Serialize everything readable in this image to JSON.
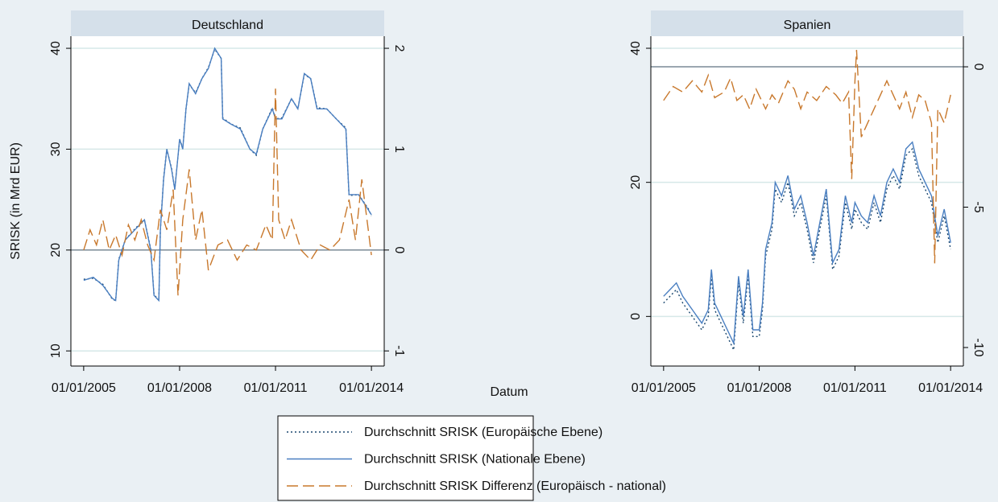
{
  "chart_data": [
    {
      "type": "line",
      "title": "Deutschland",
      "ylabel": "SRISK (in Mrd EUR)",
      "xlabel": "Datum",
      "xlim": [
        2004.6,
        2014.4
      ],
      "xticks": [
        {
          "value": 2005,
          "label": "01/01/2005"
        },
        {
          "value": 2008,
          "label": "01/01/2008"
        },
        {
          "value": 2011,
          "label": "01/01/2011"
        },
        {
          "value": 2014,
          "label": "01/01/2014"
        }
      ],
      "ylim": [
        8.5,
        41.2
      ],
      "yticks": [
        10,
        20,
        30,
        40
      ],
      "y2lim": [
        -1.15,
        2.12
      ],
      "y2ticks": [
        -1,
        0,
        1,
        2
      ],
      "grid": true,
      "y2_zero_line": true,
      "series": [
        {
          "name": "Durchschnitt SRISK (Europäische Ebene)",
          "color": "#1a476f",
          "style": "dotted",
          "x": [
            2005.0,
            2005.3,
            2005.6,
            2005.9,
            2006.0,
            2006.1,
            2006.3,
            2006.6,
            2006.9,
            2007.1,
            2007.2,
            2007.35,
            2007.4,
            2007.5,
            2007.6,
            2007.75,
            2007.85,
            2008.0,
            2008.1,
            2008.2,
            2008.3,
            2008.5,
            2008.7,
            2008.9,
            2009.1,
            2009.3,
            2009.35,
            2009.6,
            2009.9,
            2010.2,
            2010.4,
            2010.6,
            2010.9,
            2011.0,
            2011.2,
            2011.5,
            2011.7,
            2011.9,
            2012.1,
            2012.3,
            2012.6,
            2012.9,
            2013.2,
            2013.3,
            2013.6,
            2013.9,
            2014.0
          ],
          "values": [
            17.1,
            17.2,
            16.6,
            15.1,
            15.0,
            19.1,
            21.0,
            22.1,
            23.0,
            20.1,
            15.6,
            15.0,
            22.0,
            27.1,
            30.0,
            28.1,
            26.0,
            31.0,
            30.1,
            34.0,
            36.4,
            35.6,
            37.0,
            38.1,
            39.9,
            39.0,
            33.1,
            32.5,
            32.1,
            30.0,
            29.4,
            32.0,
            34.1,
            33.0,
            33.1,
            35.0,
            34.0,
            37.4,
            37.0,
            34.1,
            34.0,
            33.0,
            32.1,
            25.4,
            25.5,
            24.1,
            23.4
          ]
        },
        {
          "name": "Durchschnitt SRISK (Nationale Ebene)",
          "color": "#4a7fc1",
          "style": "solid",
          "x": [
            2005.0,
            2005.3,
            2005.6,
            2005.9,
            2006.0,
            2006.1,
            2006.3,
            2006.6,
            2006.9,
            2007.1,
            2007.2,
            2007.35,
            2007.4,
            2007.5,
            2007.6,
            2007.75,
            2007.85,
            2008.0,
            2008.1,
            2008.2,
            2008.3,
            2008.5,
            2008.7,
            2008.9,
            2009.1,
            2009.3,
            2009.35,
            2009.6,
            2009.9,
            2010.2,
            2010.4,
            2010.6,
            2010.9,
            2011.0,
            2011.2,
            2011.5,
            2011.7,
            2011.9,
            2012.1,
            2012.3,
            2012.6,
            2012.9,
            2013.2,
            2013.3,
            2013.6,
            2013.9,
            2014.0
          ],
          "values": [
            17.0,
            17.3,
            16.5,
            15.2,
            15.0,
            19.0,
            21.0,
            22.0,
            23.0,
            20.0,
            15.5,
            15.0,
            22.0,
            27.0,
            30.0,
            28.0,
            26.0,
            31.0,
            30.0,
            34.0,
            36.5,
            35.5,
            37.0,
            38.0,
            40.0,
            39.0,
            33.0,
            32.5,
            32.0,
            30.0,
            29.5,
            32.0,
            34.0,
            33.0,
            33.0,
            35.0,
            34.0,
            37.5,
            37.0,
            34.0,
            34.0,
            33.0,
            32.0,
            25.5,
            25.5,
            24.0,
            23.5
          ]
        },
        {
          "name": "Durchschnitt SRISK Differenz (Europäisch - national)",
          "color": "#c8782c",
          "style": "dashed",
          "axis": "y2",
          "x": [
            2005.0,
            2005.2,
            2005.4,
            2005.6,
            2005.8,
            2006.0,
            2006.2,
            2006.4,
            2006.6,
            2006.8,
            2007.0,
            2007.2,
            2007.4,
            2007.6,
            2007.8,
            2007.95,
            2008.1,
            2008.3,
            2008.5,
            2008.7,
            2008.9,
            2009.2,
            2009.5,
            2009.8,
            2010.1,
            2010.4,
            2010.7,
            2010.9,
            2011.0,
            2011.1,
            2011.3,
            2011.5,
            2011.8,
            2012.1,
            2012.4,
            2012.7,
            2013.0,
            2013.3,
            2013.5,
            2013.7,
            2013.9,
            2014.0
          ],
          "values": [
            0,
            0.2,
            0.05,
            0.3,
            0,
            0.15,
            -0.05,
            0.25,
            0.1,
            0.3,
            0.05,
            -0.1,
            0.4,
            0.2,
            0.6,
            -0.45,
            0.3,
            0.8,
            0.1,
            0.4,
            -0.2,
            0.05,
            0.1,
            -0.1,
            0.05,
            0,
            0.25,
            0.1,
            1.6,
            0.3,
            0.1,
            0.3,
            0,
            -0.1,
            0.05,
            0,
            0.1,
            0.5,
            0.1,
            0.7,
            0.2,
            -0.05
          ]
        }
      ]
    },
    {
      "type": "line",
      "title": "Spanien",
      "xlim": [
        2004.6,
        2014.4
      ],
      "xticks": [
        {
          "value": 2005,
          "label": "01/01/2005"
        },
        {
          "value": 2008,
          "label": "01/01/2008"
        },
        {
          "value": 2011,
          "label": "01/01/2011"
        },
        {
          "value": 2014,
          "label": "01/01/2014"
        }
      ],
      "ylim": [
        -7.4,
        41.8
      ],
      "yticks": [
        0,
        20,
        40
      ],
      "y2lim": [
        -10.66,
        1.09
      ],
      "y2ticks": [
        -10,
        -5,
        0
      ],
      "grid": true,
      "y2_zero_line": true,
      "series": [
        {
          "name": "Durchschnitt SRISK (Europäische Ebene)",
          "color": "#1a476f",
          "style": "dotted",
          "x": [
            2005.0,
            2005.2,
            2005.4,
            2005.6,
            2005.9,
            2006.2,
            2006.4,
            2006.5,
            2006.6,
            2006.8,
            2007.0,
            2007.2,
            2007.35,
            2007.5,
            2007.65,
            2007.8,
            2008.0,
            2008.1,
            2008.2,
            2008.4,
            2008.5,
            2008.7,
            2008.9,
            2009.1,
            2009.3,
            2009.5,
            2009.7,
            2009.9,
            2010.1,
            2010.3,
            2010.5,
            2010.7,
            2010.9,
            2011.0,
            2011.2,
            2011.4,
            2011.6,
            2011.8,
            2012.0,
            2012.2,
            2012.4,
            2012.6,
            2012.8,
            2013.0,
            2013.2,
            2013.4,
            2013.6,
            2013.8,
            2014.0
          ],
          "values": [
            2,
            3,
            4,
            2,
            0,
            -2,
            0,
            6,
            1,
            -1,
            -3,
            -5,
            5,
            -1,
            6,
            -3,
            -3,
            1,
            9,
            13,
            19,
            17,
            20,
            15,
            17,
            13,
            8,
            13,
            18,
            7,
            9,
            17,
            13,
            16,
            14,
            13,
            17,
            14,
            19,
            21,
            19,
            24,
            25,
            21,
            19,
            17,
            11,
            15,
            10
          ]
        },
        {
          "name": "Durchschnitt SRISK (Nationale Ebene)",
          "color": "#4a7fc1",
          "style": "solid",
          "x": [
            2005.0,
            2005.2,
            2005.4,
            2005.6,
            2005.9,
            2006.2,
            2006.4,
            2006.5,
            2006.6,
            2006.8,
            2007.0,
            2007.2,
            2007.35,
            2007.5,
            2007.65,
            2007.8,
            2008.0,
            2008.1,
            2008.2,
            2008.4,
            2008.5,
            2008.7,
            2008.9,
            2009.1,
            2009.3,
            2009.5,
            2009.7,
            2009.9,
            2010.1,
            2010.3,
            2010.5,
            2010.7,
            2010.9,
            2011.0,
            2011.2,
            2011.4,
            2011.6,
            2011.8,
            2012.0,
            2012.2,
            2012.4,
            2012.6,
            2012.8,
            2013.0,
            2013.2,
            2013.4,
            2013.6,
            2013.8,
            2014.0
          ],
          "values": [
            3,
            4,
            5,
            3,
            1,
            -1,
            1,
            7,
            2,
            0,
            -2,
            -4,
            6,
            0,
            7,
            -2,
            -2,
            2,
            10,
            14,
            20,
            18,
            21,
            16,
            18,
            14,
            9,
            14,
            19,
            8,
            10,
            18,
            14,
            17,
            15,
            14,
            18,
            15,
            20,
            22,
            20,
            25,
            26,
            22,
            20,
            18,
            12,
            16,
            11
          ]
        },
        {
          "name": "Durchschnitt SRISK Differenz (Europäisch - national)",
          "color": "#c8782c",
          "style": "dashed",
          "axis": "y2",
          "x": [
            2005.0,
            2005.3,
            2005.6,
            2005.9,
            2006.2,
            2006.4,
            2006.6,
            2006.9,
            2007.1,
            2007.3,
            2007.5,
            2007.7,
            2007.9,
            2008.2,
            2008.4,
            2008.6,
            2008.9,
            2009.1,
            2009.3,
            2009.5,
            2009.8,
            2010.1,
            2010.4,
            2010.6,
            2010.8,
            2010.9,
            2011.0,
            2011.05,
            2011.2,
            2011.4,
            2011.6,
            2011.8,
            2012.0,
            2012.2,
            2012.4,
            2012.6,
            2012.8,
            2013.0,
            2013.2,
            2013.4,
            2013.5,
            2013.6,
            2013.8,
            2014.0
          ],
          "values": [
            -1.2,
            -0.7,
            -0.9,
            -0.5,
            -0.9,
            -0.3,
            -1.1,
            -0.9,
            -0.4,
            -1.2,
            -1.0,
            -1.5,
            -0.8,
            -1.5,
            -1.0,
            -1.3,
            -0.5,
            -0.8,
            -1.5,
            -0.9,
            -1.2,
            -0.7,
            -1.0,
            -1.3,
            -0.9,
            -4.0,
            -0.5,
            0.6,
            -2.5,
            -2.0,
            -1.5,
            -1.0,
            -0.5,
            -1.0,
            -1.5,
            -0.9,
            -1.8,
            -1.0,
            -1.2,
            -2.0,
            -7.0,
            -1.5,
            -2.0,
            -1.0
          ]
        }
      ]
    }
  ]
}
